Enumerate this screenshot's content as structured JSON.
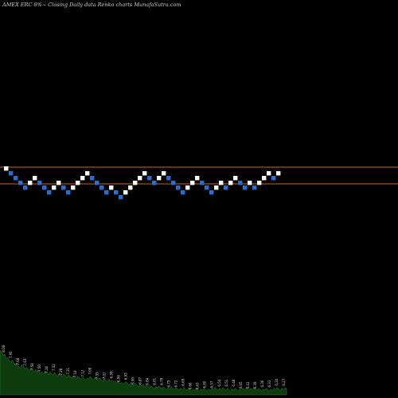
{
  "chart_data": {
    "type": "renko",
    "title": "AMEX  ERC 8%~  Closing Daily data  Renko  charts MunafaSutra.com",
    "box_size": 0.03,
    "bricks": [
      {
        "d": "up",
        "v": 7.11
      },
      {
        "d": "down",
        "v": 7.08
      },
      {
        "d": "down",
        "v": 7.05
      },
      {
        "d": "down",
        "v": 7.02
      },
      {
        "d": "down",
        "v": 6.99
      },
      {
        "d": "up",
        "v": 7.02
      },
      {
        "d": "up",
        "v": 7.05
      },
      {
        "d": "down",
        "v": 7.02
      },
      {
        "d": "down",
        "v": 6.99
      },
      {
        "d": "down",
        "v": 6.96
      },
      {
        "d": "up",
        "v": 6.99
      },
      {
        "d": "up",
        "v": 7.02
      },
      {
        "d": "down",
        "v": 6.99
      },
      {
        "d": "down",
        "v": 6.96
      },
      {
        "d": "up",
        "v": 6.99
      },
      {
        "d": "up",
        "v": 7.02
      },
      {
        "d": "up",
        "v": 7.05
      },
      {
        "d": "up",
        "v": 7.08
      },
      {
        "d": "down",
        "v": 7.05
      },
      {
        "d": "down",
        "v": 7.02
      },
      {
        "d": "down",
        "v": 6.99
      },
      {
        "d": "down",
        "v": 6.96
      },
      {
        "d": "up",
        "v": 6.99
      },
      {
        "d": "down",
        "v": 6.96
      },
      {
        "d": "down",
        "v": 6.93
      },
      {
        "d": "up",
        "v": 6.96
      },
      {
        "d": "up",
        "v": 6.99
      },
      {
        "d": "up",
        "v": 7.02
      },
      {
        "d": "up",
        "v": 7.05
      },
      {
        "d": "up",
        "v": 7.08
      },
      {
        "d": "down",
        "v": 7.05
      },
      {
        "d": "down",
        "v": 7.02
      },
      {
        "d": "up",
        "v": 7.05
      },
      {
        "d": "up",
        "v": 7.08
      },
      {
        "d": "down",
        "v": 7.05
      },
      {
        "d": "down",
        "v": 7.02
      },
      {
        "d": "down",
        "v": 6.99
      },
      {
        "d": "down",
        "v": 6.96
      },
      {
        "d": "up",
        "v": 6.99
      },
      {
        "d": "up",
        "v": 7.02
      },
      {
        "d": "up",
        "v": 7.05
      },
      {
        "d": "down",
        "v": 7.02
      },
      {
        "d": "down",
        "v": 6.99
      },
      {
        "d": "down",
        "v": 6.96
      },
      {
        "d": "up",
        "v": 6.99
      },
      {
        "d": "up",
        "v": 7.02
      },
      {
        "d": "down",
        "v": 6.99
      },
      {
        "d": "up",
        "v": 7.02
      },
      {
        "d": "up",
        "v": 7.05
      },
      {
        "d": "down",
        "v": 7.02
      },
      {
        "d": "down",
        "v": 6.99
      },
      {
        "d": "up",
        "v": 7.02
      },
      {
        "d": "down",
        "v": 6.99
      },
      {
        "d": "up",
        "v": 7.02
      },
      {
        "d": "up",
        "v": 7.05
      },
      {
        "d": "up",
        "v": 7.08
      },
      {
        "d": "down",
        "v": 7.05
      },
      {
        "d": "up",
        "v": 7.08
      }
    ],
    "reference_lines": [
      7.11,
      7.02
    ],
    "volume_labels": [
      "8.08",
      "7.91",
      "7.68",
      "7.63",
      "7.58",
      "7.50",
      "7.36",
      "7.32",
      "7.28",
      "7.21",
      "7.18",
      "7.12",
      "7.08",
      "7.05",
      "7.02",
      "6.99",
      "6.96",
      "6.93",
      "6.90",
      "6.87",
      "6.84",
      "6.81",
      "6.78",
      "6.75",
      "6.72",
      "6.69",
      "6.66",
      "6.63",
      "6.60",
      "6.57",
      "6.54",
      "6.51",
      "6.48",
      "6.45",
      "6.42",
      "6.39",
      "6.36",
      "6.33",
      "6.30",
      "6.27"
    ],
    "volume_profile": [
      60,
      58,
      52,
      55,
      49,
      50,
      46,
      44,
      47,
      42,
      40,
      43,
      38,
      36,
      41,
      39,
      34,
      37,
      35,
      32,
      36,
      33,
      31,
      34,
      30,
      33,
      29,
      31,
      28,
      32,
      30,
      27,
      31,
      29,
      26,
      30,
      28,
      25,
      29,
      27,
      24,
      28,
      26,
      23,
      27,
      25,
      22,
      26,
      24,
      21,
      25,
      23,
      20,
      24,
      22,
      19,
      23,
      21,
      25,
      22,
      20,
      24,
      21,
      19,
      23,
      20,
      18,
      22,
      19,
      17,
      21,
      18,
      20,
      17,
      19,
      16,
      18,
      15,
      17,
      14,
      16,
      18,
      15,
      13,
      17,
      14,
      12,
      16,
      13,
      11,
      15,
      12,
      14,
      10,
      13,
      11,
      9,
      12,
      10,
      8,
      11,
      9,
      12,
      10,
      8,
      11,
      9,
      7,
      10,
      8,
      11,
      9,
      7,
      10,
      8,
      6,
      9,
      7,
      10,
      8,
      6,
      9,
      7,
      5,
      8,
      6,
      9,
      7,
      5,
      8,
      6,
      9,
      7,
      5,
      8,
      6,
      9,
      7,
      10,
      8,
      6,
      9,
      7,
      10,
      8,
      6,
      9,
      7,
      5,
      8,
      6,
      9,
      7,
      5,
      8,
      6,
      9,
      7,
      10,
      8,
      6,
      9,
      7,
      10,
      8,
      6,
      9,
      7,
      5,
      8,
      6,
      9,
      7,
      5,
      8,
      6,
      9,
      7,
      10,
      8,
      6,
      9,
      7,
      10,
      8
    ],
    "colors": {
      "background": "#000000",
      "up_brick": "#ffffff",
      "down_brick": "#1e6fe6",
      "reference_line": "#c8661e",
      "volume_fill": "#0d3b0d",
      "volume_stroke": "#2e7d32"
    }
  }
}
